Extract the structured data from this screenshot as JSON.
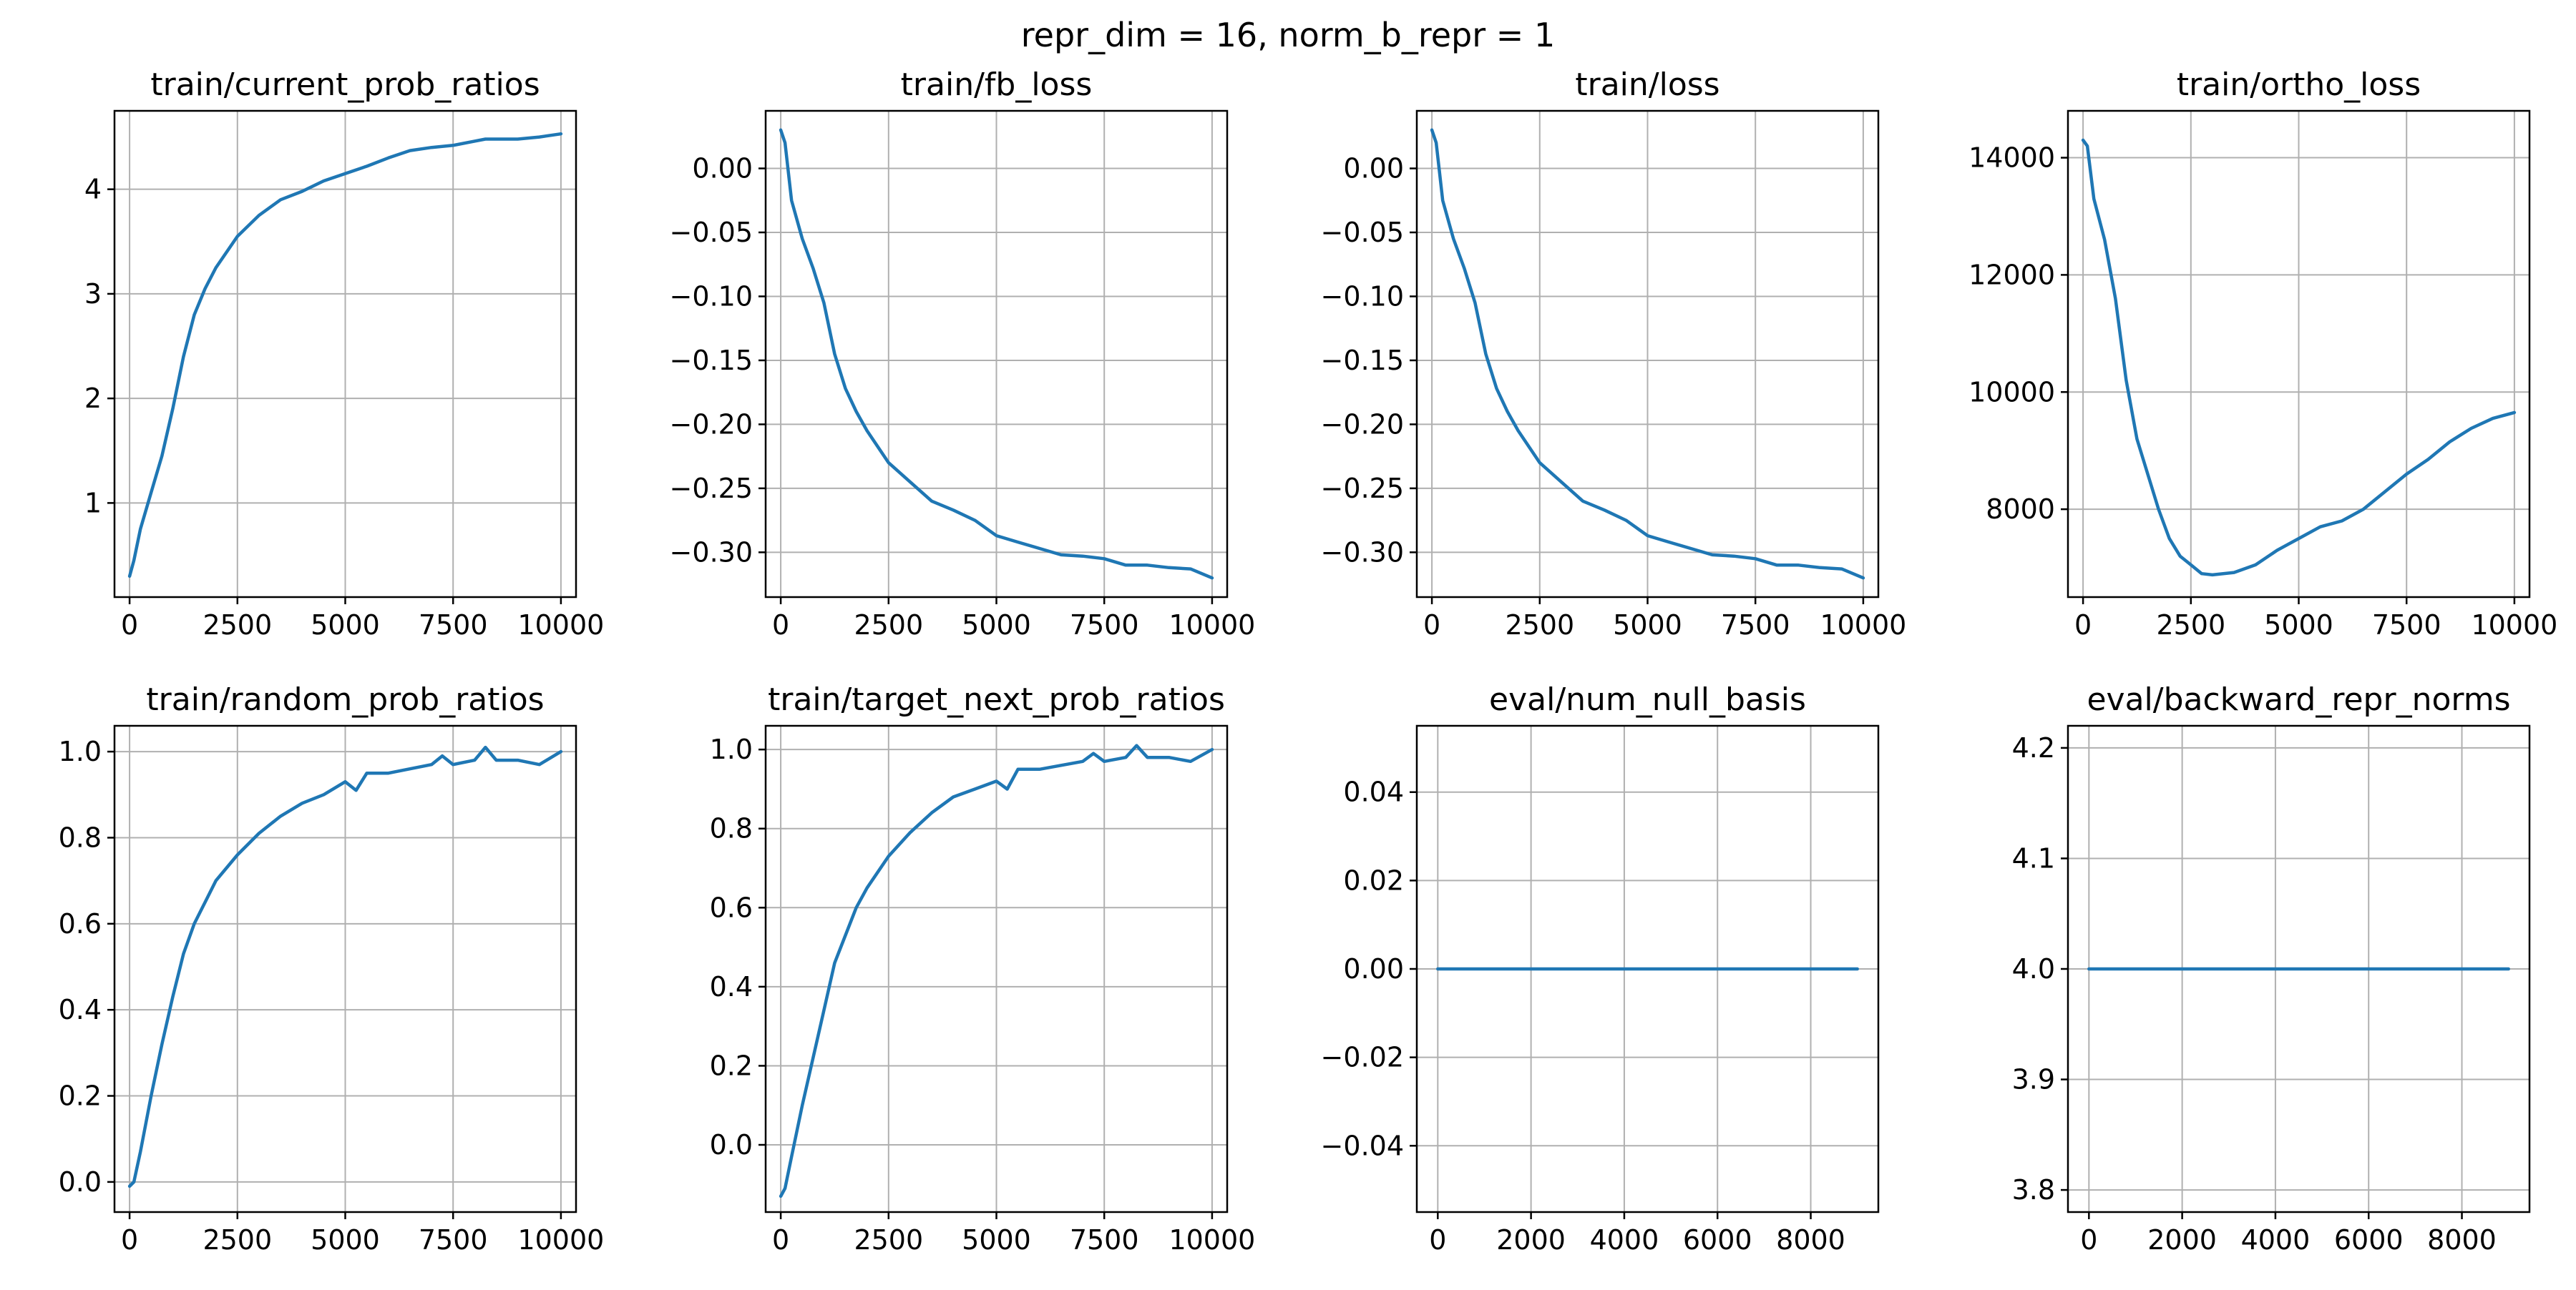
{
  "suptitle": "repr_dim = 16, norm_b_repr = 1",
  "colors": {
    "line": "#1f77b4",
    "grid": "#b0b0b0",
    "axes": "#000000"
  },
  "chart_data": [
    {
      "type": "line",
      "title": "train/current_prob_ratios",
      "xlabel": "",
      "ylabel": "",
      "xlim": [
        -350,
        10350
      ],
      "ylim": [
        0.1,
        4.75
      ],
      "xticks": [
        0,
        2500,
        5000,
        7500,
        10000
      ],
      "xticklabels": [
        "0",
        "2500",
        "5000",
        "7500",
        "10000"
      ],
      "yticks": [
        1,
        2,
        3,
        4
      ],
      "yticklabels": [
        "1",
        "2",
        "3",
        "4"
      ],
      "grid": true,
      "series": [
        {
          "x": [
            0,
            100,
            250,
            500,
            750,
            1000,
            1250,
            1500,
            1750,
            2000,
            2500,
            3000,
            3500,
            4000,
            4500,
            5000,
            5500,
            6000,
            6500,
            7000,
            7500,
            8000,
            8250,
            8500,
            9000,
            9500,
            10000
          ],
          "y": [
            0.3,
            0.45,
            0.75,
            1.1,
            1.45,
            1.9,
            2.4,
            2.8,
            3.05,
            3.25,
            3.55,
            3.75,
            3.9,
            3.98,
            4.08,
            4.15,
            4.22,
            4.3,
            4.37,
            4.4,
            4.42,
            4.46,
            4.48,
            4.48,
            4.48,
            4.5,
            4.53
          ]
        }
      ]
    },
    {
      "type": "line",
      "title": "train/fb_loss",
      "xlabel": "",
      "ylabel": "",
      "xlim": [
        -350,
        10350
      ],
      "ylim": [
        -0.335,
        0.045
      ],
      "xticks": [
        0,
        2500,
        5000,
        7500,
        10000
      ],
      "xticklabels": [
        "0",
        "2500",
        "5000",
        "7500",
        "10000"
      ],
      "yticks": [
        0.0,
        -0.05,
        -0.1,
        -0.15,
        -0.2,
        -0.25,
        -0.3
      ],
      "yticklabels": [
        "0.00",
        "−0.05",
        "−0.10",
        "−0.15",
        "−0.20",
        "−0.25",
        "−0.30"
      ],
      "grid": true,
      "series": [
        {
          "x": [
            0,
            100,
            250,
            500,
            750,
            1000,
            1250,
            1500,
            1750,
            2000,
            2500,
            3000,
            3500,
            4000,
            4500,
            5000,
            5500,
            6000,
            6500,
            7000,
            7500,
            8000,
            8500,
            9000,
            9500,
            10000
          ],
          "y": [
            0.03,
            0.02,
            -0.025,
            -0.055,
            -0.078,
            -0.105,
            -0.145,
            -0.172,
            -0.19,
            -0.205,
            -0.23,
            -0.245,
            -0.26,
            -0.267,
            -0.275,
            -0.287,
            -0.292,
            -0.297,
            -0.302,
            -0.303,
            -0.305,
            -0.31,
            -0.31,
            -0.312,
            -0.313,
            -0.32
          ]
        }
      ]
    },
    {
      "type": "line",
      "title": "train/loss",
      "xlabel": "",
      "ylabel": "",
      "xlim": [
        -350,
        10350
      ],
      "ylim": [
        -0.335,
        0.045
      ],
      "xticks": [
        0,
        2500,
        5000,
        7500,
        10000
      ],
      "xticklabels": [
        "0",
        "2500",
        "5000",
        "7500",
        "10000"
      ],
      "yticks": [
        0.0,
        -0.05,
        -0.1,
        -0.15,
        -0.2,
        -0.25,
        -0.3
      ],
      "yticklabels": [
        "0.00",
        "−0.05",
        "−0.10",
        "−0.15",
        "−0.20",
        "−0.25",
        "−0.30"
      ],
      "grid": true,
      "series": [
        {
          "x": [
            0,
            100,
            250,
            500,
            750,
            1000,
            1250,
            1500,
            1750,
            2000,
            2500,
            3000,
            3500,
            4000,
            4500,
            5000,
            5500,
            6000,
            6500,
            7000,
            7500,
            8000,
            8500,
            9000,
            9500,
            10000
          ],
          "y": [
            0.03,
            0.02,
            -0.025,
            -0.055,
            -0.078,
            -0.105,
            -0.145,
            -0.172,
            -0.19,
            -0.205,
            -0.23,
            -0.245,
            -0.26,
            -0.267,
            -0.275,
            -0.287,
            -0.292,
            -0.297,
            -0.302,
            -0.303,
            -0.305,
            -0.31,
            -0.31,
            -0.312,
            -0.313,
            -0.32
          ]
        }
      ]
    },
    {
      "type": "line",
      "title": "train/ortho_loss",
      "xlabel": "",
      "ylabel": "",
      "xlim": [
        -350,
        10350
      ],
      "ylim": [
        6500,
        14800
      ],
      "xticks": [
        0,
        2500,
        5000,
        7500,
        10000
      ],
      "xticklabels": [
        "0",
        "2500",
        "5000",
        "7500",
        "10000"
      ],
      "yticks": [
        8000,
        10000,
        12000,
        14000
      ],
      "yticklabels": [
        "8000",
        "10000",
        "12000",
        "14000"
      ],
      "grid": true,
      "series": [
        {
          "x": [
            0,
            100,
            250,
            500,
            750,
            1000,
            1250,
            1500,
            1750,
            2000,
            2250,
            2500,
            2750,
            3000,
            3500,
            4000,
            4500,
            5000,
            5500,
            6000,
            6500,
            7000,
            7500,
            8000,
            8500,
            9000,
            9500,
            10000
          ],
          "y": [
            14300,
            14200,
            13300,
            12600,
            11600,
            10200,
            9200,
            8600,
            8000,
            7500,
            7200,
            7050,
            6900,
            6880,
            6920,
            7050,
            7300,
            7500,
            7700,
            7800,
            8000,
            8300,
            8600,
            8850,
            9150,
            9380,
            9550,
            9650
          ]
        }
      ]
    },
    {
      "type": "line",
      "title": "train/random_prob_ratios",
      "xlabel": "",
      "ylabel": "",
      "xlim": [
        -350,
        10350
      ],
      "ylim": [
        -0.07,
        1.06
      ],
      "xticks": [
        0,
        2500,
        5000,
        7500,
        10000
      ],
      "xticklabels": [
        "0",
        "2500",
        "5000",
        "7500",
        "10000"
      ],
      "yticks": [
        0.0,
        0.2,
        0.4,
        0.6,
        0.8,
        1.0
      ],
      "yticklabels": [
        "0.0",
        "0.2",
        "0.4",
        "0.6",
        "0.8",
        "1.0"
      ],
      "grid": true,
      "series": [
        {
          "x": [
            0,
            100,
            250,
            500,
            750,
            1000,
            1250,
            1500,
            1750,
            2000,
            2500,
            3000,
            3500,
            4000,
            4500,
            5000,
            5250,
            5500,
            6000,
            6500,
            7000,
            7250,
            7500,
            8000,
            8250,
            8500,
            9000,
            9500,
            10000
          ],
          "y": [
            -0.01,
            0.0,
            0.07,
            0.2,
            0.32,
            0.43,
            0.53,
            0.6,
            0.65,
            0.7,
            0.76,
            0.81,
            0.85,
            0.88,
            0.9,
            0.93,
            0.91,
            0.95,
            0.95,
            0.96,
            0.97,
            0.99,
            0.97,
            0.98,
            1.01,
            0.98,
            0.98,
            0.97,
            1.0
          ]
        }
      ]
    },
    {
      "type": "line",
      "title": "train/target_next_prob_ratios",
      "xlabel": "",
      "ylabel": "",
      "xlim": [
        -350,
        10350
      ],
      "ylim": [
        -0.17,
        1.06
      ],
      "xticks": [
        0,
        2500,
        5000,
        7500,
        10000
      ],
      "xticklabels": [
        "0",
        "2500",
        "5000",
        "7500",
        "10000"
      ],
      "yticks": [
        0.0,
        0.2,
        0.4,
        0.6,
        0.8,
        1.0
      ],
      "yticklabels": [
        "0.0",
        "0.2",
        "0.4",
        "0.6",
        "0.8",
        "1.0"
      ],
      "grid": true,
      "series": [
        {
          "x": [
            0,
            100,
            250,
            500,
            750,
            1000,
            1250,
            1500,
            1750,
            2000,
            2500,
            3000,
            3500,
            4000,
            4500,
            5000,
            5250,
            5500,
            6000,
            6500,
            7000,
            7250,
            7500,
            8000,
            8250,
            8500,
            9000,
            9500,
            10000
          ],
          "y": [
            -0.13,
            -0.11,
            -0.03,
            0.1,
            0.22,
            0.34,
            0.46,
            0.53,
            0.6,
            0.65,
            0.73,
            0.79,
            0.84,
            0.88,
            0.9,
            0.92,
            0.9,
            0.95,
            0.95,
            0.96,
            0.97,
            0.99,
            0.97,
            0.98,
            1.01,
            0.98,
            0.98,
            0.97,
            1.0
          ]
        }
      ]
    },
    {
      "type": "line",
      "title": "eval/num_null_basis",
      "xlabel": "",
      "ylabel": "",
      "xlim": [
        -450,
        9450
      ],
      "ylim": [
        -0.055,
        0.055
      ],
      "xticks": [
        0,
        2000,
        4000,
        6000,
        8000
      ],
      "xticklabels": [
        "0",
        "2000",
        "4000",
        "6000",
        "8000"
      ],
      "yticks": [
        0.04,
        0.02,
        0.0,
        -0.02,
        -0.04
      ],
      "yticklabels": [
        "0.04",
        "0.02",
        "0.00",
        "−0.02",
        "−0.04"
      ],
      "grid": true,
      "series": [
        {
          "x": [
            0,
            9000
          ],
          "y": [
            0,
            0
          ]
        }
      ]
    },
    {
      "type": "line",
      "title": "eval/backward_repr_norms",
      "xlabel": "",
      "ylabel": "",
      "xlim": [
        -450,
        9450
      ],
      "ylim": [
        3.78,
        4.22
      ],
      "xticks": [
        0,
        2000,
        4000,
        6000,
        8000
      ],
      "xticklabels": [
        "0",
        "2000",
        "4000",
        "6000",
        "8000"
      ],
      "yticks": [
        4.2,
        4.1,
        4.0,
        3.9,
        3.8
      ],
      "yticklabels": [
        "4.2",
        "4.1",
        "4.0",
        "3.9",
        "3.8"
      ],
      "grid": true,
      "series": [
        {
          "x": [
            0,
            9000
          ],
          "y": [
            4.0,
            4.0
          ]
        }
      ]
    }
  ]
}
